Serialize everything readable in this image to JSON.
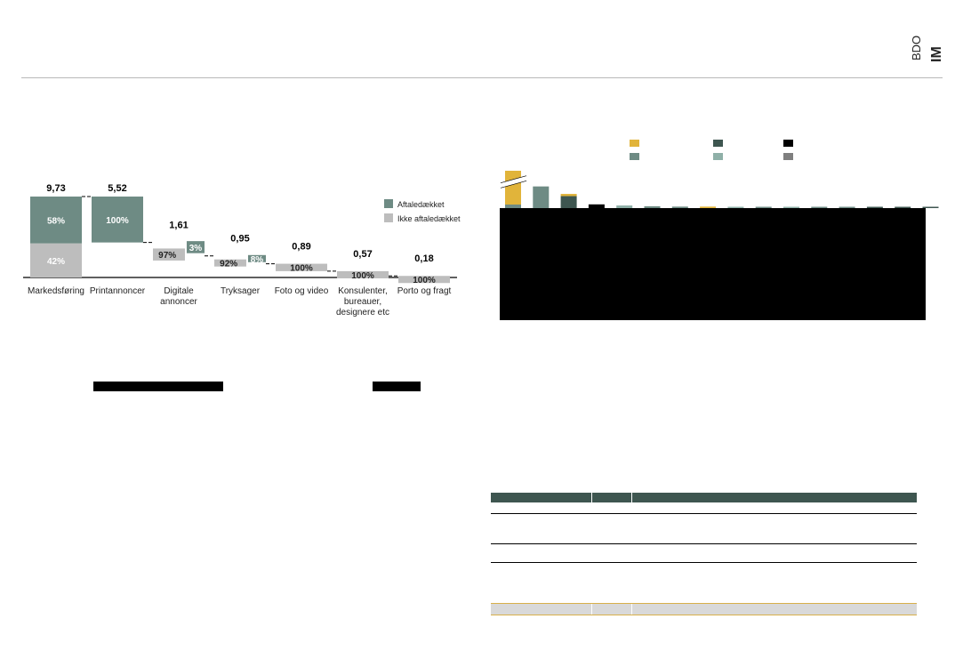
{
  "brand": {
    "logo_line1": "IM",
    "logo_line2": "BDO"
  },
  "chart_data": [
    {
      "type": "waterfall",
      "categories": [
        "Markedsføring",
        "Printannoncer",
        "Digitale annoncer",
        "Tryksager",
        "Foto og video",
        "Konsulenter, bureauer, designere etc",
        "Porto og fragt"
      ],
      "values": [
        9.73,
        5.52,
        1.61,
        0.95,
        0.89,
        0.57,
        0.18
      ],
      "value_labels": [
        "9,73",
        "5,52",
        "1,61",
        "0,95",
        "0,89",
        "0,57",
        "0,18"
      ],
      "legend": [
        "Aftaledækket",
        "Ikke aftaledækket"
      ],
      "series": [
        {
          "name": "Aftaledækket",
          "percent": [
            58,
            100,
            3,
            8,
            0,
            0,
            0
          ],
          "labels": [
            "58%",
            "100%",
            "3%",
            "8%",
            "",
            "",
            ""
          ]
        },
        {
          "name": "Ikke aftaledækket",
          "percent": [
            42,
            0,
            97,
            92,
            100,
            100,
            100
          ],
          "labels": [
            "42%",
            "",
            "97%",
            "92%",
            "100%",
            "100%",
            "100%"
          ]
        }
      ],
      "colors": {
        "Aftaledækket": "#6e8b84",
        "Ikke aftaledækket": "#bdbdbd"
      }
    },
    {
      "type": "bar",
      "values": [
        100,
        58,
        38,
        10,
        7,
        5,
        4,
        4,
        3,
        3,
        3,
        3,
        2,
        2,
        2,
        1
      ],
      "bar_colors": [
        "#e1b43a",
        "#6e8b84",
        "#3e5650",
        "#000000",
        "#8fb0a8",
        "#6e8b84",
        "#6e8b84",
        "#e1b43a",
        "#8fb0a8",
        "#6e8b84",
        "#8fb0a8",
        "#6e8b84",
        "#6e8b84",
        "#3e5650",
        "#3e5650",
        "#3e5650"
      ],
      "axis_break": true,
      "legend_colors": [
        "#e1b43a",
        "#3e5650",
        "#000000",
        "#6e8b84",
        "#8fb0a8",
        "#7f7f7f"
      ]
    }
  ],
  "table": {
    "header_color": "#3e5650",
    "total_color": "#d9d9d9",
    "total_border": "#d8b04a"
  }
}
